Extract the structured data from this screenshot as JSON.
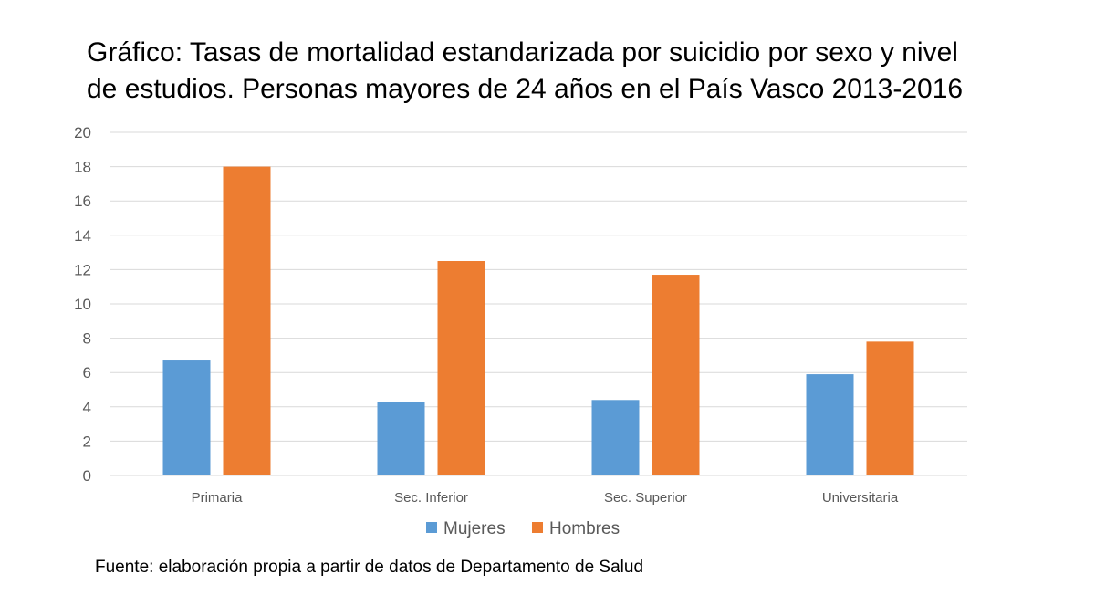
{
  "title_lines": [
    "Gráfico: Tasas de mortalidad estandarizada por suicidio por sexo y nivel",
    "de estudios. Personas mayores de 24 años en el País Vasco 2013-2016"
  ],
  "source": "Fuente: elaboración propia a partir de datos de Departamento de Salud",
  "chart_data": {
    "type": "bar",
    "title": "Gráfico: Tasas de mortalidad estandarizada por suicidio por sexo y nivel de estudios. Personas mayores de 24 años en el País Vasco 2013-2016",
    "categories": [
      "Primaria",
      "Sec. Inferior",
      "Sec. Superior",
      "Universitaria"
    ],
    "series": [
      {
        "name": "Mujeres",
        "color": "#5B9BD5",
        "values": [
          6.7,
          4.3,
          4.4,
          5.9
        ]
      },
      {
        "name": "Hombres",
        "color": "#ED7D31",
        "values": [
          18.0,
          12.5,
          11.7,
          7.8
        ]
      }
    ],
    "xlabel": "",
    "ylabel": "",
    "ylim": [
      0,
      20
    ],
    "yticks": [
      0,
      2,
      4,
      6,
      8,
      10,
      12,
      14,
      16,
      18,
      20
    ],
    "grid": true,
    "legend": "bottom"
  }
}
